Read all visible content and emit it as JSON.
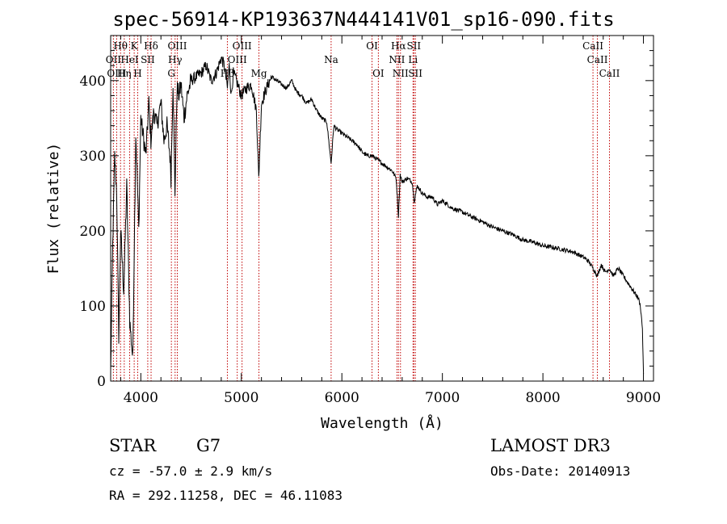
{
  "title": "spec-56914-KP193637N444141V01_sp16-090.fits",
  "object_class": "STAR",
  "subclass": "G7",
  "survey": "LAMOST DR3",
  "velocity": "cz = -57.0 ± 2.9 km/s",
  "obs_date": "Obs-Date: 20140913",
  "coords": "RA = 292.11258, DEC =  46.11083",
  "chart_data": {
    "type": "line",
    "xlabel": "Wavelength (Å)",
    "ylabel": "Flux (relative)",
    "xlim": [
      3700,
      9100
    ],
    "ylim": [
      0,
      460
    ],
    "xticks": [
      4000,
      5000,
      6000,
      7000,
      8000,
      9000
    ],
    "yticks": [
      0,
      100,
      200,
      300,
      400
    ],
    "series": [
      {
        "name": "flux",
        "x": [
          3700,
          3720,
          3740,
          3760,
          3780,
          3800,
          3830,
          3860,
          3890,
          3920,
          3950,
          3980,
          4000,
          4020,
          4050,
          4080,
          4100,
          4130,
          4160,
          4200,
          4230,
          4260,
          4290,
          4300,
          4320,
          4340,
          4360,
          4380,
          4400,
          4430,
          4460,
          4500,
          4550,
          4600,
          4650,
          4700,
          4750,
          4800,
          4830,
          4861,
          4880,
          4900,
          4920,
          4950,
          5000,
          5050,
          5100,
          5150,
          5173,
          5200,
          5250,
          5300,
          5350,
          5400,
          5450,
          5500,
          5550,
          5600,
          5650,
          5700,
          5750,
          5800,
          5850,
          5893,
          5920,
          5950,
          6000,
          6050,
          6100,
          6150,
          6200,
          6250,
          6300,
          6350,
          6400,
          6450,
          6500,
          6540,
          6563,
          6580,
          6600,
          6650,
          6700,
          6720,
          6750,
          6800,
          6850,
          6900,
          6950,
          7000,
          7100,
          7200,
          7300,
          7400,
          7500,
          7600,
          7700,
          7800,
          7900,
          8000,
          8100,
          8200,
          8300,
          8400,
          8450,
          8500,
          8542,
          8580,
          8620,
          8662,
          8700,
          8750,
          8800,
          8850,
          8900,
          8950,
          8970,
          8990,
          9000
        ],
        "values": [
          10,
          180,
          300,
          250,
          60,
          200,
          120,
          260,
          80,
          30,
          330,
          200,
          350,
          330,
          300,
          370,
          320,
          360,
          340,
          370,
          320,
          340,
          300,
          270,
          400,
          250,
          390,
          380,
          395,
          350,
          380,
          400,
          405,
          410,
          420,
          400,
          410,
          430,
          420,
          390,
          420,
          380,
          410,
          400,
          380,
          390,
          395,
          360,
          270,
          370,
          390,
          405,
          400,
          395,
          390,
          400,
          385,
          380,
          370,
          375,
          360,
          350,
          345,
          290,
          340,
          335,
          330,
          325,
          320,
          315,
          305,
          300,
          300,
          295,
          290,
          285,
          280,
          270,
          220,
          275,
          265,
          270,
          265,
          240,
          260,
          250,
          245,
          245,
          235,
          240,
          230,
          225,
          218,
          212,
          205,
          200,
          195,
          188,
          185,
          180,
          178,
          175,
          172,
          165,
          160,
          150,
          140,
          155,
          145,
          150,
          140,
          150,
          140,
          130,
          120,
          110,
          100,
          70,
          10
        ]
      }
    ],
    "annotations": [
      {
        "label": "Hθ",
        "x": 3798,
        "row": 0
      },
      {
        "label": "Hη",
        "x": 3835,
        "row": 2
      },
      {
        "label": "K",
        "x": 3934,
        "row": 0
      },
      {
        "label": "H",
        "x": 3969,
        "row": 2
      },
      {
        "label": "Hδ",
        "x": 4102,
        "row": 0
      },
      {
        "label": "SII",
        "x": 4069,
        "row": 1
      },
      {
        "label": "HeI",
        "x": 3889,
        "row": 1
      },
      {
        "label": "OII",
        "x": 3727,
        "row": 1
      },
      {
        "label": "OIII",
        "x": 3760,
        "row": 2
      },
      {
        "label": "OIII",
        "x": 4363,
        "row": 0
      },
      {
        "label": "Hγ",
        "x": 4341,
        "row": 1
      },
      {
        "label": "G",
        "x": 4304,
        "row": 2
      },
      {
        "label": "OIII",
        "x": 5007,
        "row": 0
      },
      {
        "label": "OIII",
        "x": 4959,
        "row": 1
      },
      {
        "label": "Hβ",
        "x": 4861,
        "row": 2
      },
      {
        "label": "Mg",
        "x": 5175,
        "row": 2
      },
      {
        "label": "Na",
        "x": 5893,
        "row": 1
      },
      {
        "label": "OI",
        "x": 6300,
        "row": 0
      },
      {
        "label": "OI",
        "x": 6363,
        "row": 2
      },
      {
        "label": "Hα",
        "x": 6563,
        "row": 0
      },
      {
        "label": "NII",
        "x": 6548,
        "row": 1
      },
      {
        "label": "NII",
        "x": 6583,
        "row": 2
      },
      {
        "label": "SII",
        "x": 6716,
        "row": 0
      },
      {
        "label": "Li",
        "x": 6708,
        "row": 1
      },
      {
        "label": "SII",
        "x": 6731,
        "row": 2
      },
      {
        "label": "CaII",
        "x": 8498,
        "row": 0
      },
      {
        "label": "CaII",
        "x": 8542,
        "row": 1
      },
      {
        "label": "CaII",
        "x": 8662,
        "row": 2
      }
    ]
  }
}
